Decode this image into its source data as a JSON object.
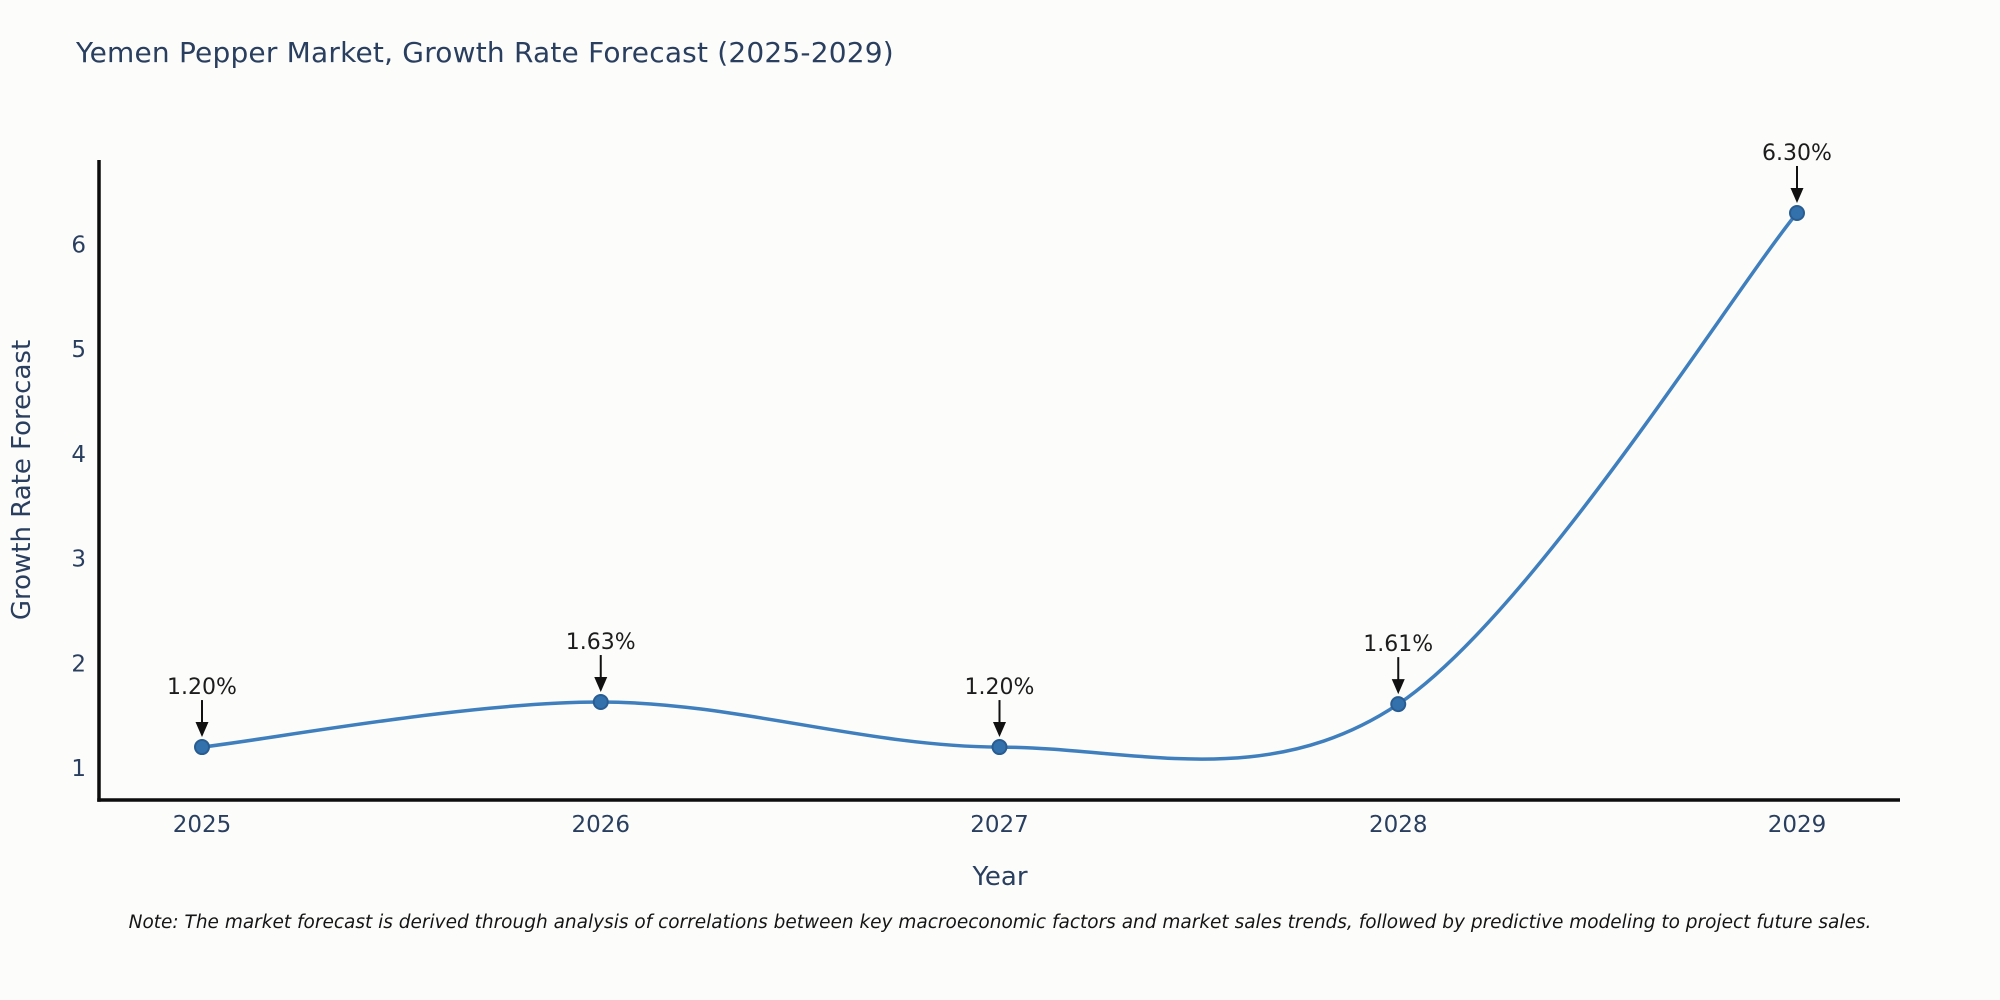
{
  "chart_data": {
    "type": "line",
    "title": "Yemen Pepper Market, Growth Rate Forecast (2025-2029)",
    "xlabel": "Year",
    "ylabel": "Growth Rate Forecast",
    "categories": [
      "2025",
      "2026",
      "2027",
      "2028",
      "2029"
    ],
    "values": [
      1.2,
      1.63,
      1.2,
      1.61,
      6.3
    ],
    "point_labels": [
      "1.20%",
      "1.63%",
      "1.20%",
      "1.61%",
      "6.30%"
    ],
    "yticks": [
      1,
      2,
      3,
      4,
      5,
      6
    ],
    "ylim": [
      0.69,
      6.81
    ],
    "line_shape": "spline",
    "grid": false,
    "legend": "none",
    "colors": {
      "line": "#3f7fbd",
      "marker_fill": "#3371ad",
      "marker_edge": "#295d92",
      "axis": "#0d0d0d",
      "arrow": "#111111",
      "text": "#2a3f5f"
    },
    "note": "Note: The market forecast is derived through analysis of correlations between key macroeconomic factors and market sales trends, followed by predictive modeling to project future sales."
  }
}
